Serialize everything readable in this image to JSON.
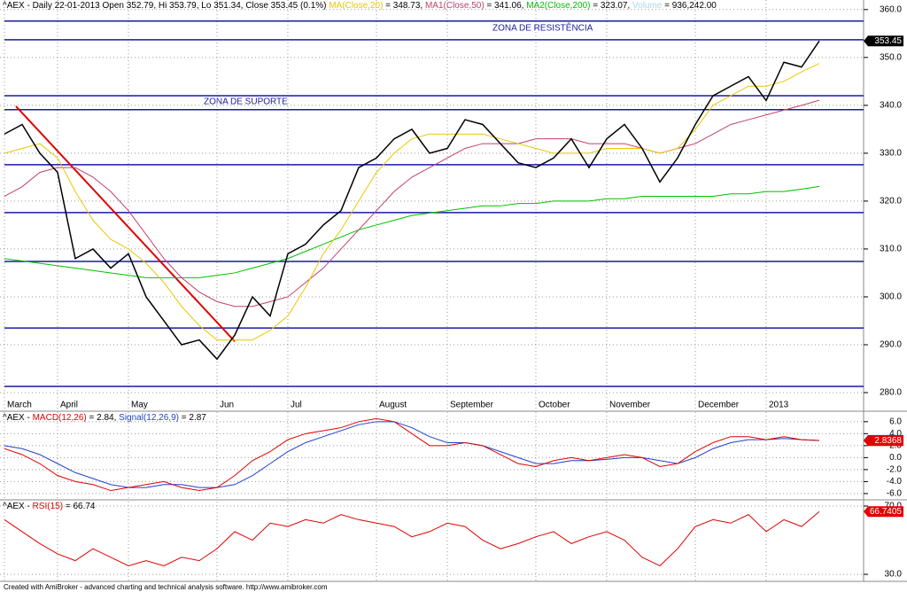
{
  "chart_data": [
    {
      "type": "line",
      "title": [
        {
          "text": "^AEX - Daily 22-01-2013 Open 352.79, Hi 353.79, Lo 351.34, Close 353.45 (0.1%) ",
          "color": "#000000"
        },
        {
          "text": "MA(Close,20)",
          "color": "#e8c800"
        },
        {
          "text": " = 348.73, ",
          "color": "#000000"
        },
        {
          "text": "MA1(Close,50)",
          "color": "#c04070"
        },
        {
          "text": " = 341.06, ",
          "color": "#000000"
        },
        {
          "text": "MA2(Close,200)",
          "color": "#00c000"
        },
        {
          "text": " = 323.07, ",
          "color": "#000000"
        },
        {
          "text": "Volume",
          "color": "#a8d8ea"
        },
        {
          "text": " = 936,242.00",
          "color": "#000000"
        }
      ],
      "categories": [
        "March",
        null,
        null,
        "April",
        null,
        null,
        null,
        "May",
        null,
        null,
        null,
        null,
        "Jun",
        null,
        null,
        null,
        "Jul",
        null,
        null,
        null,
        null,
        "August",
        null,
        null,
        null,
        "September",
        null,
        null,
        null,
        null,
        "October",
        null,
        null,
        null,
        "November",
        null,
        null,
        null,
        null,
        "December",
        null,
        null,
        null,
        "2013",
        null,
        null,
        null
      ],
      "series": [
        {
          "name": "Close",
          "color": "#000000",
          "values": [
            334,
            336,
            330,
            326,
            308,
            310,
            306,
            309,
            300,
            295,
            290,
            291,
            287,
            292,
            300,
            296,
            309,
            311,
            315,
            318,
            327,
            329,
            333,
            335,
            330,
            331,
            337,
            336,
            332,
            328,
            327,
            329,
            333,
            327,
            333,
            336,
            331,
            324,
            329,
            336,
            342,
            344,
            346,
            341,
            349,
            348,
            353.45
          ]
        },
        {
          "name": "MA(Close,20)",
          "color": "#e8c800",
          "values": [
            330,
            331,
            332,
            329,
            322,
            316,
            312,
            310,
            307,
            303,
            298,
            294,
            291,
            291,
            291,
            293,
            296,
            302,
            309,
            314,
            320,
            326,
            330,
            333,
            334,
            334,
            334,
            334,
            333,
            332,
            331,
            330,
            330,
            330,
            331,
            331,
            331,
            330,
            331,
            335,
            340,
            342,
            344,
            344,
            345,
            347,
            348.73
          ]
        },
        {
          "name": "MA1(Close,50)",
          "color": "#c04070",
          "values": [
            321,
            323,
            326,
            327,
            327,
            325,
            322,
            318,
            313,
            308,
            304,
            301,
            299,
            298,
            298,
            299,
            300,
            303,
            306,
            310,
            314,
            318,
            322,
            325,
            327,
            329,
            331,
            332,
            332,
            332,
            333,
            333,
            333,
            332,
            332,
            332,
            331,
            330,
            331,
            332,
            334,
            336,
            337,
            338,
            339,
            340,
            341.06
          ]
        },
        {
          "name": "MA2(Close,200)",
          "color": "#00c000",
          "values": [
            308,
            307.5,
            307,
            306.5,
            306,
            305.5,
            305,
            304.5,
            304,
            304,
            304,
            304,
            304.5,
            305,
            306,
            307,
            308,
            309.5,
            311,
            312.5,
            314,
            315,
            316,
            317,
            317.5,
            318,
            318.5,
            319,
            319,
            319.5,
            319.5,
            320,
            320,
            320,
            320.5,
            320.5,
            321,
            321,
            321,
            321,
            321,
            321.5,
            321.5,
            322,
            322,
            322.5,
            323.07
          ]
        }
      ],
      "levels": {
        "color": "#1a1aa0",
        "values": [
          357.6,
          353.7,
          342.0,
          339.1,
          327.6,
          317.6,
          307.4,
          293.5,
          281.3
        ]
      },
      "trendline": {
        "color": "#e00000",
        "values": [
          339.8,
          290.7
        ]
      },
      "annotations": [
        "ZONA DE RESISTÊNCIA",
        "ZONA DE SUPORTE"
      ],
      "tags": [
        {
          "value": 353.45,
          "color": "#000000"
        }
      ],
      "ylim": [
        276.3,
        362.0
      ],
      "yticks": [
        {
          "value": 280,
          "label": "280.0"
        },
        {
          "value": 290,
          "label": "290.0"
        },
        {
          "value": 300,
          "label": "300.0"
        },
        {
          "value": 310,
          "label": "310.0"
        },
        {
          "value": 320,
          "label": "320.0"
        },
        {
          "value": 330,
          "label": "330.0"
        },
        {
          "value": 340,
          "label": "340.0"
        },
        {
          "value": 350,
          "label": "350.0"
        },
        {
          "value": 360,
          "label": "360.0"
        }
      ],
      "grid": true
    },
    {
      "type": "line",
      "title": [
        {
          "text": "^AEX - ",
          "color": "#000000"
        },
        {
          "text": "MACD(12,26)",
          "color": "#e00000"
        },
        {
          "text": " = 2.84, ",
          "color": "#000000"
        },
        {
          "text": "Signal(12,26,9)",
          "color": "#1f3fd0"
        },
        {
          "text": " = 2.87",
          "color": "#000000"
        }
      ],
      "series": [
        {
          "name": "MACD(12,26)",
          "color": "#e00000",
          "values": [
            1.5,
            0.5,
            -1,
            -3,
            -4,
            -4.5,
            -5.5,
            -5,
            -4.5,
            -4,
            -5,
            -5.5,
            -5,
            -3,
            -0.5,
            1,
            3,
            4,
            4.5,
            5,
            6,
            6.5,
            6,
            4,
            2,
            2,
            2.5,
            2,
            0.5,
            -1,
            -1.5,
            -0.5,
            0,
            -0.5,
            0,
            0.5,
            0,
            -1.5,
            -1,
            1,
            2.5,
            3.5,
            3.5,
            3,
            3.5,
            3,
            2.84
          ]
        },
        {
          "name": "Signal(12,26,9)",
          "color": "#1f3fd0",
          "values": [
            2,
            1.5,
            0.5,
            -1,
            -2.5,
            -3.5,
            -4.5,
            -5,
            -5,
            -4.5,
            -4.5,
            -5,
            -5,
            -4.5,
            -3,
            -1,
            1,
            2.5,
            3.5,
            4.5,
            5.5,
            6,
            6,
            5,
            3.5,
            2.5,
            2.5,
            2,
            1,
            0,
            -1,
            -1,
            -0.5,
            -0.5,
            -0.3,
            0,
            0,
            -0.5,
            -1,
            0,
            1.5,
            2.5,
            3,
            3,
            3.2,
            3,
            2.87
          ]
        }
      ],
      "tags": [
        {
          "value": 2.87485,
          "color": "#1f3fd0"
        },
        {
          "value": 2.8368,
          "color": "#e00000"
        }
      ],
      "ylim": [
        -6.9,
        7.6
      ],
      "yticks": [
        {
          "value": -6,
          "label": "-6.0"
        },
        {
          "value": -4,
          "label": "-4.0"
        },
        {
          "value": -2,
          "label": "-2.0"
        },
        {
          "value": 0,
          "label": "0.0"
        },
        {
          "value": 2,
          "label": "2.0"
        },
        {
          "value": 4,
          "label": "4.0"
        },
        {
          "value": 6,
          "label": "6.0"
        }
      ],
      "grid": true
    },
    {
      "type": "line",
      "title": [
        {
          "text": "^AEX - ",
          "color": "#000000"
        },
        {
          "text": "RSI(15)",
          "color": "#e00000"
        },
        {
          "text": " = 66.74",
          "color": "#000000"
        }
      ],
      "series": [
        {
          "name": "RSI(15)",
          "color": "#e00000",
          "values": [
            62,
            55,
            48,
            42,
            38,
            45,
            40,
            35,
            38,
            35,
            40,
            38,
            45,
            55,
            50,
            60,
            58,
            62,
            60,
            65,
            62,
            60,
            58,
            52,
            55,
            60,
            58,
            50,
            45,
            48,
            52,
            55,
            48,
            52,
            55,
            50,
            40,
            35,
            45,
            58,
            62,
            60,
            65,
            55,
            62,
            58,
            66.74
          ]
        }
      ],
      "tags": [
        {
          "value": 66.7405,
          "color": "#e00000"
        }
      ],
      "ylim": [
        26.4,
        72.6
      ],
      "yticks": [
        {
          "value": 30,
          "label": "30.0"
        },
        {
          "value": 70,
          "label": "70.0"
        }
      ],
      "grid": true
    }
  ],
  "footer": "Created with AmiBroker - advanced charting and technical analysis software. http://www.amibroker.com"
}
